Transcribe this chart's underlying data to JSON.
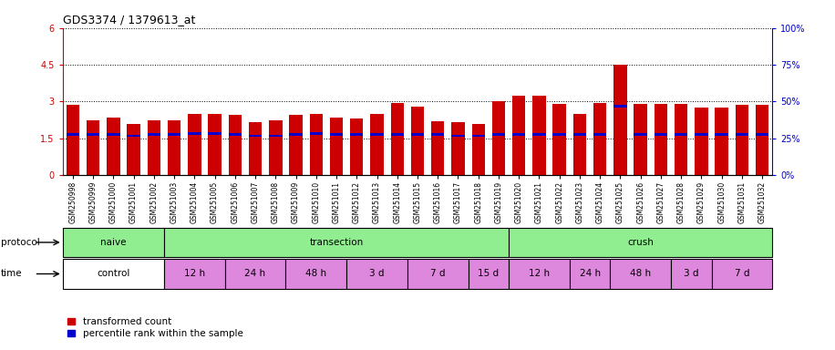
{
  "title": "GDS3374 / 1379613_at",
  "samples": [
    "GSM250998",
    "GSM250999",
    "GSM251000",
    "GSM251001",
    "GSM251002",
    "GSM251003",
    "GSM251004",
    "GSM251005",
    "GSM251006",
    "GSM251007",
    "GSM251008",
    "GSM251009",
    "GSM251010",
    "GSM251011",
    "GSM251012",
    "GSM251013",
    "GSM251014",
    "GSM251015",
    "GSM251016",
    "GSM251017",
    "GSM251018",
    "GSM251019",
    "GSM251020",
    "GSM251021",
    "GSM251022",
    "GSM251023",
    "GSM251024",
    "GSM251025",
    "GSM251026",
    "GSM251027",
    "GSM251028",
    "GSM251029",
    "GSM251030",
    "GSM251031",
    "GSM251032"
  ],
  "red_values": [
    2.85,
    2.25,
    2.35,
    2.1,
    2.25,
    2.25,
    2.5,
    2.5,
    2.45,
    2.15,
    2.25,
    2.45,
    2.5,
    2.35,
    2.3,
    2.5,
    2.95,
    2.8,
    2.2,
    2.15,
    2.1,
    3.0,
    3.25,
    3.25,
    2.9,
    2.5,
    2.95,
    4.5,
    2.9,
    2.9,
    2.9,
    2.75,
    2.75,
    2.85,
    2.85
  ],
  "blue_values": [
    1.65,
    1.65,
    1.65,
    1.6,
    1.65,
    1.65,
    1.7,
    1.7,
    1.65,
    1.6,
    1.6,
    1.65,
    1.7,
    1.65,
    1.65,
    1.65,
    1.65,
    1.65,
    1.65,
    1.6,
    1.6,
    1.65,
    1.65,
    1.65,
    1.65,
    1.65,
    1.65,
    2.8,
    1.65,
    1.65,
    1.65,
    1.65,
    1.65,
    1.65,
    1.65
  ],
  "ylim_left": [
    0,
    6
  ],
  "ylim_right": [
    0,
    100
  ],
  "yticks_left": [
    0,
    1.5,
    3.0,
    4.5,
    6.0
  ],
  "yticks_right": [
    0,
    25,
    50,
    75,
    100
  ],
  "ytick_labels_left": [
    "0",
    "1.5",
    "3",
    "4.5",
    "6"
  ],
  "ytick_labels_right": [
    "0%",
    "25%",
    "50%",
    "75%",
    "100%"
  ],
  "bar_width": 0.65,
  "red_color": "#cc0000",
  "blue_color": "#0000cc",
  "bg_color": "#ffffff",
  "legend_red": "transformed count",
  "legend_blue": "percentile rank within the sample",
  "protocol_groups": [
    {
      "label": "naive",
      "start": 0,
      "end": 5,
      "color": "#90ee90"
    },
    {
      "label": "transection",
      "start": 5,
      "end": 22,
      "color": "#90ee90"
    },
    {
      "label": "crush",
      "start": 22,
      "end": 35,
      "color": "#90ee90"
    }
  ],
  "time_groups": [
    {
      "label": "control",
      "start": 0,
      "end": 5,
      "color": "#ffffff"
    },
    {
      "label": "12 h",
      "start": 5,
      "end": 8,
      "color": "#dd88dd"
    },
    {
      "label": "24 h",
      "start": 8,
      "end": 11,
      "color": "#dd88dd"
    },
    {
      "label": "48 h",
      "start": 11,
      "end": 14,
      "color": "#dd88dd"
    },
    {
      "label": "3 d",
      "start": 14,
      "end": 17,
      "color": "#dd88dd"
    },
    {
      "label": "7 d",
      "start": 17,
      "end": 20,
      "color": "#dd88dd"
    },
    {
      "label": "15 d",
      "start": 20,
      "end": 22,
      "color": "#dd88dd"
    },
    {
      "label": "12 h",
      "start": 22,
      "end": 25,
      "color": "#dd88dd"
    },
    {
      "label": "24 h",
      "start": 25,
      "end": 27,
      "color": "#dd88dd"
    },
    {
      "label": "48 h",
      "start": 27,
      "end": 30,
      "color": "#dd88dd"
    },
    {
      "label": "3 d",
      "start": 30,
      "end": 32,
      "color": "#dd88dd"
    },
    {
      "label": "7 d",
      "start": 32,
      "end": 35,
      "color": "#dd88dd"
    }
  ]
}
